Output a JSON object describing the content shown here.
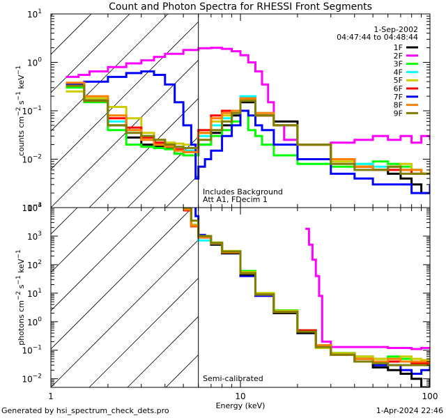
{
  "chart_data": [
    {
      "panel": "top",
      "type": "line",
      "title": "Count and Photon Spectra for RHESSI Front Segments",
      "xlabel": "Energy (keV)",
      "ylabel": "counts cm^-2 s^-1 keV^-1",
      "xscale": "log",
      "yscale": "log",
      "xlim": [
        1,
        100
      ],
      "ylim": [
        0.001,
        10
      ],
      "ytick_labels": [
        {
          "base": "10",
          "exp": "1",
          "value": 10
        },
        {
          "base": "10",
          "exp": "0",
          "value": 1
        },
        {
          "base": "10",
          "exp": "−1",
          "value": 0.1
        },
        {
          "base": "10",
          "exp": "−2",
          "value": 0.01
        },
        {
          "base": "10",
          "exp": "−3",
          "value": 0.001
        }
      ],
      "date": "1-Sep-2002",
      "time_range": "04:47:44 to 04:48:44",
      "annotations": [
        "Includes Background",
        "Att A1, FDecim 1"
      ],
      "shaded_below_energy": 6,
      "legend": {
        "placement": "top-right",
        "entries": [
          "1F",
          "2F",
          "3F",
          "4F",
          "5F",
          "6F",
          "7F",
          "8F",
          "9F"
        ]
      },
      "series": [
        {
          "name": "1F",
          "color": "#000000",
          "x": [
            1.2,
            1.5,
            2,
            2.5,
            3,
            3.5,
            4,
            4.5,
            5,
            6,
            7,
            8,
            9,
            10,
            12,
            15,
            20,
            30,
            40,
            50,
            60,
            70,
            80,
            90,
            100
          ],
          "y": [
            0.32,
            0.17,
            0.05,
            0.028,
            0.02,
            0.018,
            0.017,
            0.013,
            0.012,
            0.02,
            0.035,
            0.05,
            0.08,
            0.15,
            0.08,
            0.06,
            0.02,
            0.01,
            0.007,
            0.006,
            0.005,
            0.004,
            0.003,
            0.002,
            0.003
          ]
        },
        {
          "name": "2F",
          "color": "#ff00ff",
          "x": [
            1.2,
            1.4,
            1.6,
            2,
            2.5,
            3,
            3.5,
            4,
            5,
            6,
            7,
            8,
            9,
            10,
            11,
            12,
            13,
            14,
            15,
            17,
            20,
            25,
            30,
            40,
            50,
            60,
            70,
            80,
            90,
            100
          ],
          "y": [
            0.5,
            0.55,
            0.65,
            0.8,
            0.95,
            1.1,
            1.3,
            1.5,
            1.8,
            1.95,
            2.0,
            1.9,
            1.7,
            1.4,
            1.0,
            0.65,
            0.35,
            0.15,
            0.05,
            0.025,
            0.02,
            0.02,
            0.022,
            0.025,
            0.03,
            0.025,
            0.03,
            0.022,
            0.03,
            0.025
          ]
        },
        {
          "name": "3F",
          "color": "#00ff00",
          "x": [
            1.2,
            1.5,
            2,
            2.5,
            3,
            3.5,
            4,
            4.5,
            5,
            6,
            7,
            8,
            9,
            10,
            11,
            12,
            13,
            15,
            20,
            30,
            40,
            50,
            60,
            70,
            80,
            90,
            100
          ],
          "y": [
            0.3,
            0.15,
            0.04,
            0.02,
            0.018,
            0.017,
            0.016,
            0.013,
            0.012,
            0.02,
            0.03,
            0.04,
            0.06,
            0.1,
            0.04,
            0.03,
            0.02,
            0.012,
            0.008,
            0.007,
            0.008,
            0.009,
            0.008,
            0.007,
            0.006,
            0.005,
            0.005
          ]
        },
        {
          "name": "4F",
          "color": "#00ffff",
          "x": [
            1.2,
            1.5,
            2,
            2.5,
            3,
            3.5,
            4,
            4.5,
            5,
            6,
            7,
            8,
            9,
            10,
            12,
            15,
            20,
            30,
            40,
            50,
            60,
            70,
            80,
            90,
            100
          ],
          "y": [
            0.35,
            0.18,
            0.06,
            0.04,
            0.03,
            0.022,
            0.02,
            0.018,
            0.015,
            0.03,
            0.05,
            0.07,
            0.1,
            0.2,
            0.09,
            0.05,
            0.02,
            0.01,
            0.008,
            0.007,
            0.007,
            0.006,
            0.006,
            0.005,
            0.005
          ]
        },
        {
          "name": "5F",
          "color": "#cccc00",
          "x": [
            1.2,
            1.5,
            2,
            2.5,
            3,
            3.5,
            4,
            4.5,
            5,
            6,
            7,
            8,
            9,
            10,
            12,
            15,
            20,
            30,
            40,
            50,
            60,
            70,
            80,
            90,
            100
          ],
          "y": [
            0.25,
            0.18,
            0.12,
            0.07,
            0.035,
            0.025,
            0.022,
            0.021,
            0.02,
            0.035,
            0.06,
            0.08,
            0.1,
            0.17,
            0.08,
            0.05,
            0.02,
            0.009,
            0.007,
            0.006,
            0.007,
            0.008,
            0.006,
            0.005,
            0.006
          ]
        },
        {
          "name": "6F",
          "color": "#ff0000",
          "x": [
            1.2,
            1.5,
            2,
            2.5,
            3,
            3.5,
            4,
            4.5,
            5,
            6,
            7,
            8,
            9,
            10,
            12,
            15,
            20,
            30,
            40,
            50,
            60,
            70,
            80,
            90,
            100
          ],
          "y": [
            0.36,
            0.16,
            0.07,
            0.045,
            0.028,
            0.022,
            0.02,
            0.016,
            0.014,
            0.04,
            0.08,
            0.1,
            0.1,
            0.18,
            0.08,
            0.05,
            0.02,
            0.01,
            0.007,
            0.006,
            0.006,
            0.006,
            0.005,
            0.005,
            0.005
          ]
        },
        {
          "name": "7F",
          "color": "#0000ff",
          "x": [
            1.2,
            1.5,
            2,
            2.5,
            3,
            3.5,
            4,
            4.5,
            5,
            5.5,
            5.8,
            6,
            6.5,
            7,
            8,
            9,
            10,
            11,
            12,
            13,
            15,
            20,
            30,
            40,
            50,
            60,
            70,
            80,
            90,
            100
          ],
          "y": [
            0.35,
            0.4,
            0.5,
            0.6,
            0.65,
            0.55,
            0.35,
            0.15,
            0.05,
            0.02,
            0.004,
            0.007,
            0.01,
            0.015,
            0.03,
            0.05,
            0.1,
            0.08,
            0.05,
            0.04,
            0.02,
            0.01,
            0.005,
            0.004,
            0.003,
            0.003,
            0.003,
            0.002,
            0.002,
            0.003
          ]
        },
        {
          "name": "8F",
          "color": "#ff8000",
          "x": [
            1.2,
            1.5,
            2,
            2.5,
            3,
            3.5,
            4,
            4.5,
            5,
            6,
            7,
            8,
            9,
            10,
            12,
            15,
            20,
            30,
            40,
            50,
            60,
            70,
            80,
            90,
            100
          ],
          "y": [
            0.38,
            0.2,
            0.08,
            0.04,
            0.025,
            0.02,
            0.018,
            0.015,
            0.014,
            0.035,
            0.07,
            0.09,
            0.1,
            0.18,
            0.09,
            0.05,
            0.02,
            0.01,
            0.007,
            0.006,
            0.007,
            0.006,
            0.006,
            0.005,
            0.005
          ]
        },
        {
          "name": "9F",
          "color": "#808000",
          "x": [
            1.2,
            1.5,
            2,
            2.5,
            3,
            3.5,
            4,
            4.5,
            5,
            6,
            7,
            8,
            9,
            10,
            12,
            15,
            20,
            30,
            40,
            50,
            60,
            70,
            80,
            90,
            100
          ],
          "y": [
            0.33,
            0.16,
            0.05,
            0.035,
            0.03,
            0.025,
            0.02,
            0.018,
            0.017,
            0.025,
            0.04,
            0.06,
            0.09,
            0.16,
            0.08,
            0.05,
            0.02,
            0.008,
            0.006,
            0.006,
            0.007,
            0.005,
            0.005,
            0.005,
            0.005
          ]
        }
      ]
    },
    {
      "panel": "bottom",
      "type": "line",
      "xlabel": "Energy (keV)",
      "ylabel": "photons cm^-2 s^-1 keV^-1",
      "xscale": "log",
      "yscale": "log",
      "xlim": [
        1,
        100
      ],
      "ylim": [
        0.005,
        10000
      ],
      "xtick_labels": [
        "1",
        "10",
        "100"
      ],
      "ytick_labels": [
        {
          "base": "10",
          "exp": "4",
          "value": 10000
        },
        {
          "base": "10",
          "exp": "3",
          "value": 1000
        },
        {
          "base": "10",
          "exp": "2",
          "value": 100
        },
        {
          "base": "10",
          "exp": "1",
          "value": 10
        },
        {
          "base": "10",
          "exp": "0",
          "value": 1
        },
        {
          "base": "10",
          "exp": "−1",
          "value": 0.1
        },
        {
          "base": "10",
          "exp": "−2",
          "value": 0.01
        }
      ],
      "annotations": [
        "Semi-calibrated"
      ],
      "shaded_below_energy": 6,
      "series": [
        {
          "name": "2F",
          "color": "#ff00ff",
          "x": [
            22,
            23,
            24,
            25,
            26,
            27,
            30,
            40,
            50,
            60,
            70,
            80,
            90,
            100
          ],
          "y": [
            1800,
            500,
            150,
            40,
            8,
            0.2,
            0.13,
            0.13,
            0.13,
            0.12,
            0.12,
            0.11,
            0.12,
            0.12
          ]
        },
        {
          "name": "7F",
          "color": "#0000ff",
          "x": [
            5.5,
            5.8,
            6,
            6.5,
            7,
            8,
            10,
            12,
            15,
            20,
            25,
            30,
            40,
            50,
            60,
            70,
            80,
            90,
            100
          ],
          "y": [
            12000,
            5000,
            1100,
            900,
            600,
            250,
            40,
            8,
            2,
            0.4,
            0.15,
            0.08,
            0.05,
            0.03,
            0.03,
            0.02,
            0.015,
            0.02,
            0.03
          ]
        },
        {
          "name": "1F",
          "color": "#000000",
          "x": [
            5,
            5.5,
            6,
            7,
            8,
            10,
            12,
            15,
            20,
            25,
            30,
            40,
            50,
            60,
            70,
            80,
            90,
            100
          ],
          "y": [
            9000,
            2500,
            900,
            500,
            250,
            45,
            9,
            2,
            0.4,
            0.15,
            0.07,
            0.04,
            0.025,
            0.02,
            0.015,
            0.01,
            0.005,
            0.01
          ]
        },
        {
          "name": "3F",
          "color": "#00ff00",
          "x": [
            5,
            5.5,
            6,
            7,
            8,
            10,
            12,
            15,
            20,
            25,
            30,
            40,
            50,
            60,
            70,
            80,
            90,
            100
          ],
          "y": [
            9000,
            2500,
            1000,
            600,
            300,
            60,
            10,
            2.5,
            0.5,
            0.15,
            0.08,
            0.06,
            0.05,
            0.06,
            0.05,
            0.04,
            0.04,
            0.04
          ]
        },
        {
          "name": "4F",
          "color": "#00ffff",
          "x": [
            5,
            5.5,
            6,
            7,
            8,
            10,
            12,
            15,
            20,
            25,
            30,
            40,
            50,
            60,
            70,
            80,
            90,
            100
          ],
          "y": [
            9000,
            2500,
            700,
            550,
            280,
            50,
            9,
            2.2,
            0.45,
            0.12,
            0.08,
            0.05,
            0.04,
            0.04,
            0.04,
            0.035,
            0.035,
            0.035
          ]
        },
        {
          "name": "5F",
          "color": "#cccc00",
          "x": [
            5,
            5.5,
            6,
            7,
            8,
            10,
            12,
            15,
            20,
            25,
            30,
            40,
            50,
            60,
            70,
            80,
            90,
            100
          ],
          "y": [
            9000,
            2500,
            950,
            600,
            300,
            55,
            10,
            2.4,
            0.45,
            0.12,
            0.08,
            0.06,
            0.05,
            0.05,
            0.06,
            0.05,
            0.045,
            0.04
          ]
        },
        {
          "name": "6F",
          "color": "#ff0000",
          "x": [
            5,
            5.5,
            6,
            7,
            8,
            10,
            12,
            15,
            20,
            25,
            30,
            40,
            50,
            60,
            70,
            80,
            90,
            100
          ],
          "y": [
            8000,
            2200,
            900,
            560,
            280,
            50,
            9,
            2.2,
            0.5,
            0.15,
            0.07,
            0.05,
            0.04,
            0.04,
            0.04,
            0.035,
            0.035,
            0.03
          ]
        },
        {
          "name": "8F",
          "color": "#ff8000",
          "x": [
            5,
            5.5,
            6,
            7,
            8,
            10,
            12,
            15,
            20,
            25,
            30,
            40,
            50,
            60,
            70,
            80,
            90,
            100
          ],
          "y": [
            8500,
            2300,
            900,
            560,
            270,
            50,
            9,
            2.2,
            0.45,
            0.15,
            0.07,
            0.05,
            0.04,
            0.05,
            0.04,
            0.04,
            0.04,
            0.035
          ]
        },
        {
          "name": "9F",
          "color": "#808000",
          "x": [
            5,
            5.5,
            6,
            7,
            8,
            10,
            12,
            15,
            20,
            25,
            30,
            40,
            50,
            60,
            70,
            80,
            90,
            100
          ],
          "y": [
            10000,
            3500,
            1000,
            580,
            290,
            50,
            9,
            2.2,
            0.45,
            0.13,
            0.07,
            0.04,
            0.035,
            0.03,
            0.03,
            0.03,
            0.03,
            0.03
          ]
        }
      ]
    }
  ],
  "footer": {
    "generated_by": "Generated by hsi_spectrum_check_dets.pro",
    "timestamp": "1-Apr-2024 22:46"
  }
}
